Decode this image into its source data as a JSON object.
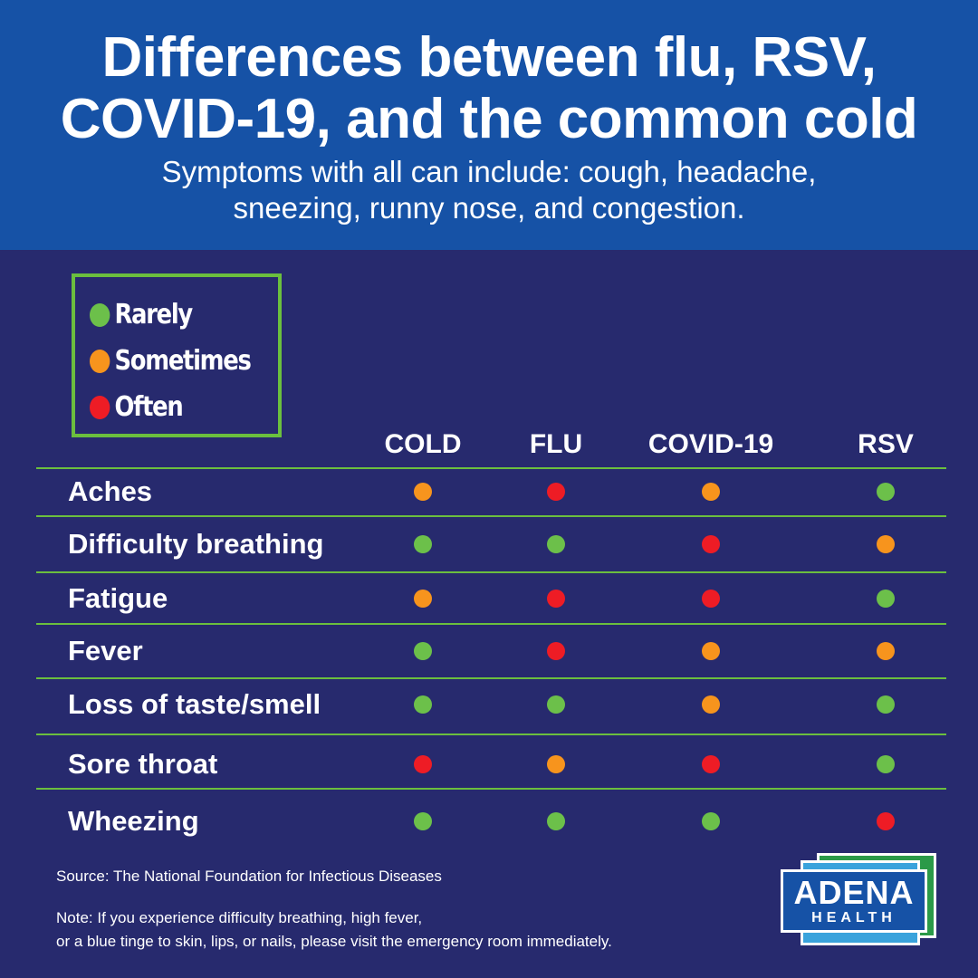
{
  "header": {
    "title_line1": "Differences between flu, RSV,",
    "title_line2": "COVID-19, and the common cold",
    "subtitle_line1": "Symptoms with all can include: cough, headache,",
    "subtitle_line2": "sneezing, runny nose, and congestion."
  },
  "legend": [
    {
      "label": "Rarely",
      "level": "rarely"
    },
    {
      "label": "Sometimes",
      "level": "sometimes"
    },
    {
      "label": "Often",
      "level": "often"
    }
  ],
  "colors": {
    "rarely": "#6cc04a",
    "sometimes": "#f7941d",
    "often": "#ee1c25",
    "header_bg": "#1652a6",
    "body_bg": "#272a6e",
    "rule": "#6bbf3e"
  },
  "table": {
    "columns": [
      "COLD",
      "FLU",
      "COVID-19",
      "RSV"
    ],
    "rows": [
      {
        "symptom": "Aches",
        "values": [
          "sometimes",
          "often",
          "sometimes",
          "rarely"
        ]
      },
      {
        "symptom": "Difficulty breathing",
        "values": [
          "rarely",
          "rarely",
          "often",
          "sometimes"
        ]
      },
      {
        "symptom": "Fatigue",
        "values": [
          "sometimes",
          "often",
          "often",
          "rarely"
        ]
      },
      {
        "symptom": "Fever",
        "values": [
          "rarely",
          "often",
          "sometimes",
          "sometimes"
        ]
      },
      {
        "symptom": "Loss of taste/smell",
        "values": [
          "rarely",
          "rarely",
          "sometimes",
          "rarely"
        ]
      },
      {
        "symptom": "Sore throat",
        "values": [
          "often",
          "sometimes",
          "often",
          "rarely"
        ]
      },
      {
        "symptom": "Wheezing",
        "values": [
          "rarely",
          "rarely",
          "rarely",
          "often"
        ]
      }
    ]
  },
  "footer": {
    "source": "Source: The National Foundation for Infectious Diseases",
    "note_line1": "Note: If you experience difficulty breathing, high fever,",
    "note_line2": "or a blue tinge to skin, lips, or nails, please visit the emergency room immediately."
  },
  "logo": {
    "word": "ADENA",
    "sub": "HEALTH"
  }
}
